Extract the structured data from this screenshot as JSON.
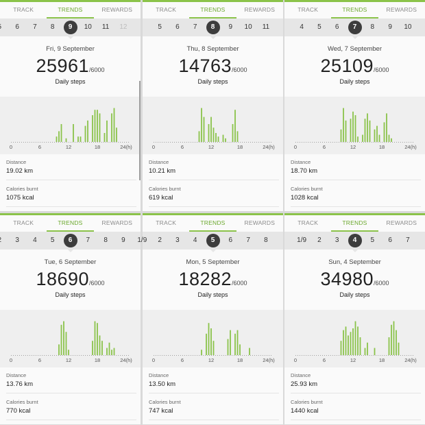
{
  "colors": {
    "accent": "#8bc34a",
    "bar": "#8bc34a",
    "selected_day": "#3d3d3d"
  },
  "panels": [
    {
      "tabs": [
        "TRACK",
        "TRENDS",
        "REWARDS"
      ],
      "active_tab": 1,
      "days": [
        {
          "t": "5",
          "faded": false
        },
        {
          "t": "6",
          "faded": false
        },
        {
          "t": "7",
          "faded": false
        },
        {
          "t": "8",
          "faded": false
        },
        {
          "t": "9",
          "faded": false,
          "selected": true
        },
        {
          "t": "10",
          "faded": false
        },
        {
          "t": "11",
          "faded": false
        },
        {
          "t": "12",
          "faded": true
        }
      ],
      "date": "Fri, 9 September",
      "steps": "25961",
      "goal": "/6000",
      "steps_label": "Daily steps",
      "chart_data": {
        "type": "bar",
        "x_unit": "24(h)",
        "xticks": [
          "0",
          "6",
          "12",
          "18",
          "24(h)"
        ],
        "x": [
          9.5,
          10,
          10.5,
          11.5,
          13,
          14,
          14.5,
          15.5,
          16,
          17,
          17.5,
          18,
          18.5,
          19.5,
          20,
          21,
          21.5,
          22
        ],
        "values": [
          0.15,
          0.3,
          0.5,
          0.1,
          0.5,
          0.15,
          0.15,
          0.45,
          0.6,
          0.75,
          0.9,
          0.9,
          0.8,
          0.25,
          0.6,
          0.8,
          0.95,
          0.4
        ]
      },
      "distance_label": "Distance",
      "distance": "19.02 km",
      "calories_label": "Calories burnt",
      "calories": "1075 kcal",
      "scrollbar": true
    },
    {
      "tabs": [
        "TRACK",
        "TRENDS",
        "REWARDS"
      ],
      "active_tab": 1,
      "days": [
        {
          "t": "5",
          "faded": false
        },
        {
          "t": "6",
          "faded": false
        },
        {
          "t": "7",
          "faded": false
        },
        {
          "t": "8",
          "faded": false,
          "selected": true
        },
        {
          "t": "9",
          "faded": false
        },
        {
          "t": "10",
          "faded": false
        },
        {
          "t": "11",
          "faded": false
        }
      ],
      "date": "Thu, 8 September",
      "steps": "14763",
      "goal": "/6000",
      "steps_label": "Daily steps",
      "chart_data": {
        "type": "bar",
        "x_unit": "24(h)",
        "xticks": [
          "0",
          "6",
          "12",
          "18",
          "24(h)"
        ],
        "x": [
          9.5,
          10,
          10.5,
          11.5,
          12,
          12.5,
          13,
          13.5,
          14.5,
          15,
          16.5,
          17,
          17.5
        ],
        "values": [
          0.3,
          0.95,
          0.7,
          0.5,
          0.7,
          0.4,
          0.25,
          0.15,
          0.2,
          0.1,
          0.5,
          0.9,
          0.3
        ]
      },
      "distance_label": "Distance",
      "distance": "10.21 km",
      "calories_label": "Calories burnt",
      "calories": "619 kcal",
      "scrollbar": false
    },
    {
      "tabs": [
        "TRACK",
        "TRENDS",
        "REWARDS"
      ],
      "active_tab": 1,
      "days": [
        {
          "t": "4",
          "faded": false
        },
        {
          "t": "5",
          "faded": false
        },
        {
          "t": "6",
          "faded": false
        },
        {
          "t": "7",
          "faded": false,
          "selected": true
        },
        {
          "t": "8",
          "faded": false
        },
        {
          "t": "9",
          "faded": false
        },
        {
          "t": "10",
          "faded": false
        }
      ],
      "date": "Wed, 7 September",
      "steps": "25109",
      "goal": "/6000",
      "steps_label": "Daily steps",
      "chart_data": {
        "type": "bar",
        "x_unit": "24(h)",
        "xticks": [
          "0",
          "6",
          "12",
          "18",
          "24(h)"
        ],
        "x": [
          9.5,
          10,
          10.5,
          11.5,
          12,
          12.5,
          13,
          14,
          14.5,
          15,
          15.5,
          16.5,
          17,
          17.5,
          18.5,
          19,
          19.5,
          20
        ],
        "values": [
          0.35,
          0.95,
          0.6,
          0.65,
          0.85,
          0.75,
          0.15,
          0.2,
          0.65,
          0.8,
          0.6,
          0.35,
          0.45,
          0.2,
          0.55,
          0.8,
          0.2,
          0.1
        ]
      },
      "distance_label": "Distance",
      "distance": "18.70 km",
      "calories_label": "Calories burnt",
      "calories": "1028 kcal",
      "scrollbar": false
    },
    {
      "tabs": [
        "TRACK",
        "TRENDS",
        "REWARDS"
      ],
      "active_tab": 1,
      "days": [
        {
          "t": "2",
          "faded": false
        },
        {
          "t": "3",
          "faded": false
        },
        {
          "t": "4",
          "faded": false
        },
        {
          "t": "5",
          "faded": false
        },
        {
          "t": "6",
          "faded": false,
          "selected": true
        },
        {
          "t": "7",
          "faded": false
        },
        {
          "t": "8",
          "faded": false
        },
        {
          "t": "9",
          "faded": false
        }
      ],
      "date": "Tue, 6 September",
      "steps": "18690",
      "goal": "/6000",
      "steps_label": "Daily steps",
      "chart_data": {
        "type": "bar",
        "x_unit": "24(h)",
        "xticks": [
          "0",
          "6",
          "12",
          "18",
          "24(h)"
        ],
        "x": [
          10,
          10.5,
          11,
          11.5,
          12,
          17,
          17.5,
          18,
          18.5,
          19,
          20,
          20.5,
          21,
          21.5
        ],
        "values": [
          0.3,
          0.85,
          0.95,
          0.65,
          0.15,
          0.4,
          0.95,
          0.9,
          0.55,
          0.4,
          0.2,
          0.35,
          0.15,
          0.2
        ]
      },
      "distance_label": "Distance",
      "distance": "13.76 km",
      "calories_label": "Calories burnt",
      "calories": "770 kcal",
      "scrollbar": false
    },
    {
      "tabs": [
        "TRACK",
        "TRENDS",
        "REWARDS"
      ],
      "active_tab": 1,
      "days": [
        {
          "t": "1/9",
          "faded": false
        },
        {
          "t": "2",
          "faded": false
        },
        {
          "t": "3",
          "faded": false
        },
        {
          "t": "4",
          "faded": false
        },
        {
          "t": "5",
          "faded": false,
          "selected": true
        },
        {
          "t": "6",
          "faded": false
        },
        {
          "t": "7",
          "faded": false
        },
        {
          "t": "8",
          "faded": false
        }
      ],
      "date": "Mon, 5 September",
      "steps": "18282",
      "goal": "/6000",
      "steps_label": "Daily steps",
      "chart_data": {
        "type": "bar",
        "x_unit": "24(h)",
        "xticks": [
          "0",
          "6",
          "12",
          "18",
          "24(h)"
        ],
        "x": [
          10,
          11,
          11.5,
          12,
          12.5,
          15.5,
          16,
          17,
          17.5,
          18,
          20
        ],
        "values": [
          0.15,
          0.6,
          0.9,
          0.75,
          0.4,
          0.45,
          0.7,
          0.6,
          0.7,
          0.3,
          0.2
        ]
      },
      "distance_label": "Distance",
      "distance": "13.50 km",
      "calories_label": "Calories burnt",
      "calories": "747 kcal",
      "scrollbar": false
    },
    {
      "tabs": [
        "TRACK",
        "TRENDS",
        "REWARDS"
      ],
      "active_tab": 1,
      "days": [
        {
          "t": "1/9",
          "faded": false
        },
        {
          "t": "2",
          "faded": false
        },
        {
          "t": "3",
          "faded": false
        },
        {
          "t": "4",
          "faded": false,
          "selected": true
        },
        {
          "t": "5",
          "faded": false
        },
        {
          "t": "6",
          "faded": false
        },
        {
          "t": "7",
          "faded": false
        }
      ],
      "date": "Sun, 4 September",
      "steps": "34980",
      "goal": "/6000",
      "steps_label": "Daily steps",
      "chart_data": {
        "type": "bar",
        "x_unit": "24(h)",
        "xticks": [
          "0",
          "6",
          "12",
          "18",
          "24(h)"
        ],
        "x": [
          9.5,
          10,
          10.5,
          11,
          11.5,
          12,
          12.5,
          13,
          13.5,
          14.5,
          15,
          16.5,
          19.5,
          20,
          20.5,
          21,
          21.5
        ],
        "values": [
          0.4,
          0.7,
          0.8,
          0.55,
          0.65,
          0.75,
          0.95,
          0.8,
          0.5,
          0.2,
          0.35,
          0.2,
          0.5,
          0.85,
          0.95,
          0.7,
          0.35
        ]
      },
      "distance_label": "Distance",
      "distance": "25.93 km",
      "calories_label": "Calories burnt",
      "calories": "1440 kcal",
      "scrollbar": false
    }
  ]
}
